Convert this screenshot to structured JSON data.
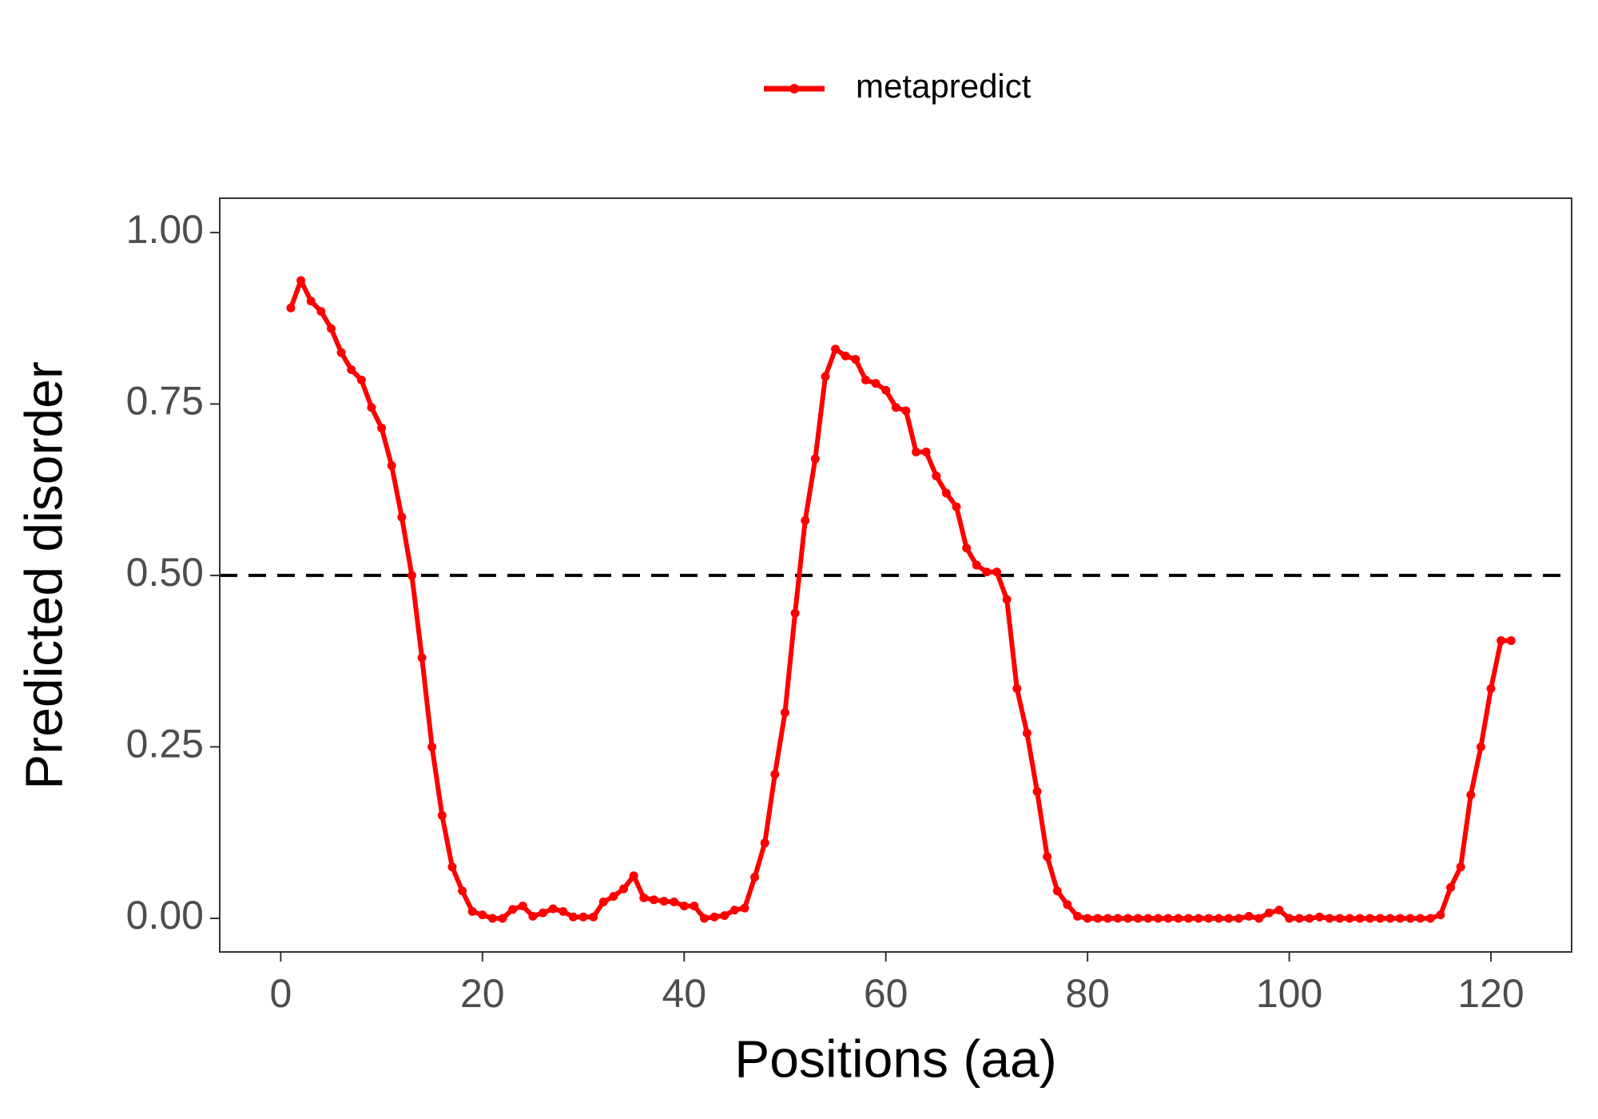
{
  "chart_data": {
    "type": "line",
    "x_label": "Positions (aa)",
    "y_label": "Predicted disorder",
    "x": [
      1,
      2,
      3,
      4,
      5,
      6,
      7,
      8,
      9,
      10,
      11,
      12,
      13,
      14,
      15,
      16,
      17,
      18,
      19,
      20,
      21,
      22,
      23,
      24,
      25,
      26,
      27,
      28,
      29,
      30,
      31,
      32,
      33,
      34,
      35,
      36,
      37,
      38,
      39,
      40,
      41,
      42,
      43,
      44,
      45,
      46,
      47,
      48,
      49,
      50,
      51,
      52,
      53,
      54,
      55,
      56,
      57,
      58,
      59,
      60,
      61,
      62,
      63,
      64,
      65,
      66,
      67,
      68,
      69,
      70,
      71,
      72,
      73,
      74,
      75,
      76,
      77,
      78,
      79,
      80,
      81,
      82,
      83,
      84,
      85,
      86,
      87,
      88,
      89,
      90,
      91,
      92,
      93,
      94,
      95,
      96,
      97,
      98,
      99,
      100,
      101,
      102,
      103,
      104,
      105,
      106,
      107,
      108,
      109,
      110,
      111,
      112,
      113,
      114,
      115,
      116,
      117,
      118,
      119,
      120,
      121,
      122
    ],
    "series": [
      {
        "name": "metapredict",
        "color": "#ff0000",
        "values": [
          0.89,
          0.93,
          0.9,
          0.885,
          0.86,
          0.825,
          0.8,
          0.785,
          0.745,
          0.715,
          0.66,
          0.585,
          0.5,
          0.38,
          0.25,
          0.15,
          0.075,
          0.04,
          0.01,
          0.005,
          0.0,
          0.0,
          0.013,
          0.018,
          0.003,
          0.008,
          0.014,
          0.01,
          0.002,
          0.002,
          0.002,
          0.024,
          0.032,
          0.043,
          0.062,
          0.03,
          0.027,
          0.025,
          0.024,
          0.018,
          0.018,
          0.0,
          0.002,
          0.004,
          0.012,
          0.015,
          0.06,
          0.11,
          0.21,
          0.3,
          0.445,
          0.58,
          0.67,
          0.79,
          0.83,
          0.82,
          0.815,
          0.785,
          0.78,
          0.77,
          0.745,
          0.74,
          0.68,
          0.68,
          0.645,
          0.62,
          0.6,
          0.54,
          0.515,
          0.505,
          0.505,
          0.465,
          0.335,
          0.27,
          0.185,
          0.09,
          0.04,
          0.02,
          0.003,
          0.0,
          0.0,
          0.0,
          0.0,
          0.0,
          0.0,
          0.0,
          0.0,
          0.0,
          0.0,
          0.0,
          0.0,
          0.0,
          0.0,
          0.0,
          0.0,
          0.003,
          0.0,
          0.008,
          0.012,
          0.0,
          0.0,
          0.0,
          0.002,
          0.0,
          0.0,
          0.0,
          0.0,
          0.0,
          0.0,
          0.0,
          0.0,
          0.0,
          0.0,
          0.0,
          0.005,
          0.045,
          0.075,
          0.18,
          0.25,
          0.335,
          0.405,
          0.405
        ]
      }
    ],
    "xlim": [
      -6.05,
      128
    ],
    "ylim": [
      -0.049,
      1.05
    ],
    "xticks": [
      0,
      20,
      40,
      60,
      80,
      100,
      120
    ],
    "yticks": [
      {
        "value": 0,
        "label": "0.00"
      },
      {
        "value": 0.25,
        "label": "0.25"
      },
      {
        "value": 0.5,
        "label": "0.50"
      },
      {
        "value": 0.75,
        "label": "0.75"
      },
      {
        "value": 1,
        "label": "1.00"
      }
    ],
    "hline": 0.5,
    "legend": "top",
    "grid": false
  }
}
